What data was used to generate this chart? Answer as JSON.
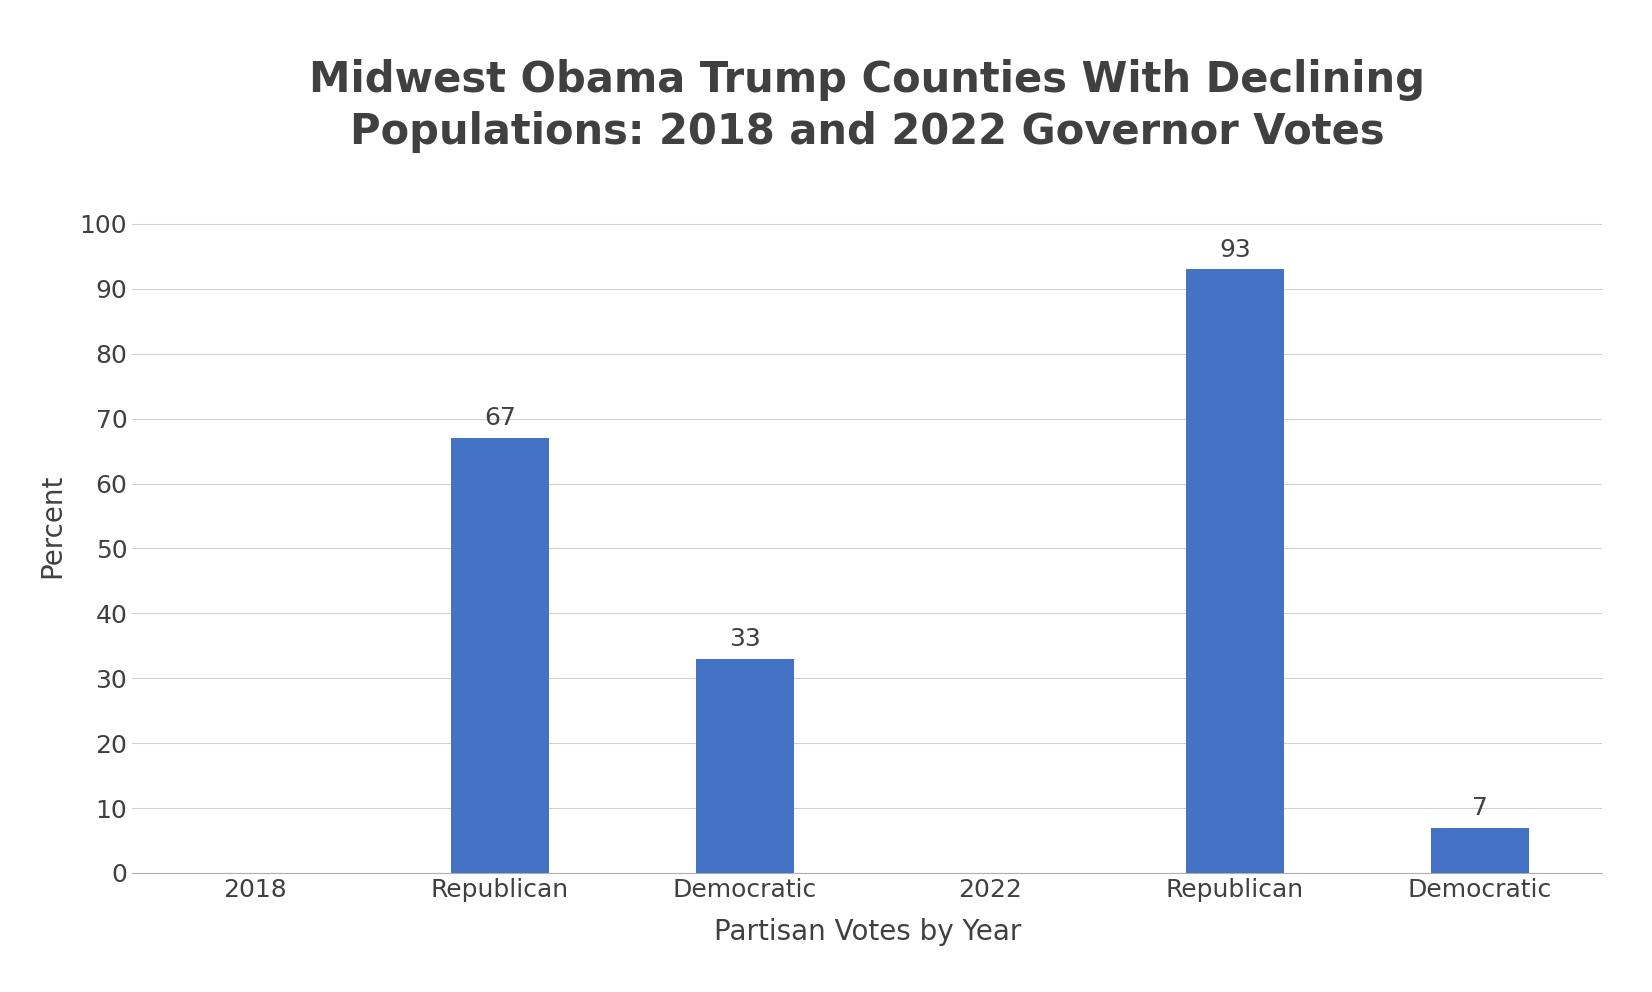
{
  "title": "Midwest Obama Trump Counties With Declining\nPopulations: 2018 and 2022 Governor Votes",
  "xlabel": "Partisan Votes by Year",
  "ylabel": "Percent",
  "bar_color": "#4472C4",
  "categories": [
    "2018",
    "Republican",
    "Democratic",
    "2022",
    "Republican",
    "Democratic"
  ],
  "bar_indices": [
    1,
    2,
    4,
    5
  ],
  "bar_values": [
    67,
    33,
    93,
    7
  ],
  "bar_labels": [
    "67",
    "33",
    "93",
    "7"
  ],
  "ylim": [
    0,
    107
  ],
  "yticks": [
    0,
    10,
    20,
    30,
    40,
    50,
    60,
    70,
    80,
    90,
    100
  ],
  "background_color": "#ffffff",
  "title_fontsize": 30,
  "axis_label_fontsize": 20,
  "tick_fontsize": 18,
  "bar_label_fontsize": 18,
  "grid_color": "#d0d0d0",
  "text_color": "#404040",
  "bar_width": 0.4,
  "xlim": [
    -0.5,
    5.5
  ]
}
